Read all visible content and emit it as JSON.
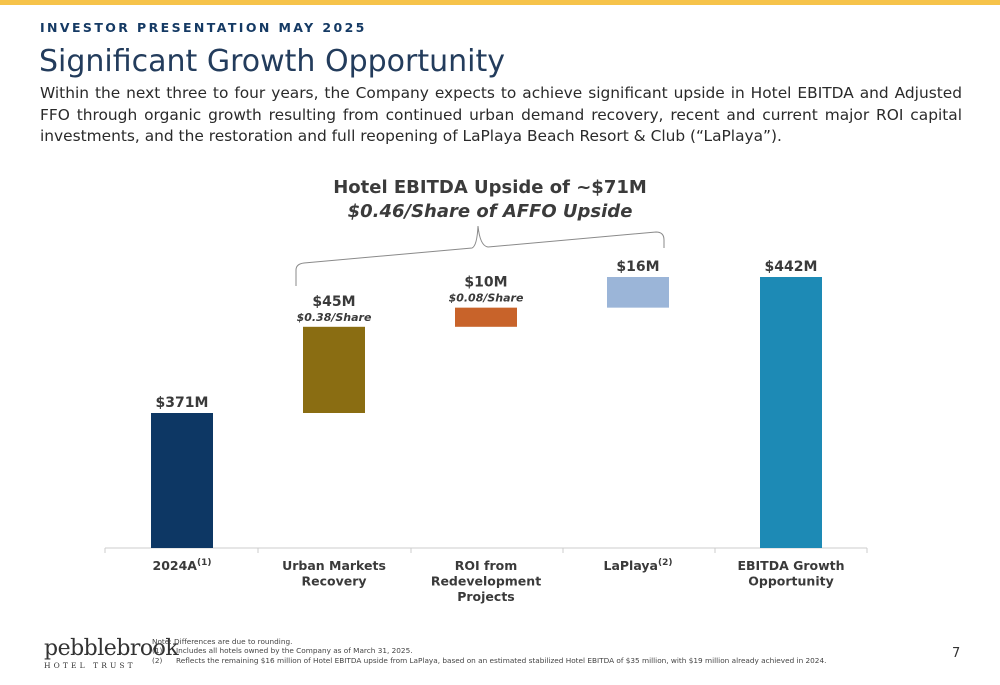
{
  "header": {
    "eyebrow": "INVESTOR PRESENTATION MAY 2025",
    "title": "Significant Growth Opportunity",
    "intro": "Within the next three to four years, the Company expects to achieve significant upside in Hotel EBITDA and Adjusted FFO through organic growth resulting from continued urban demand recovery, recent and current major ROI capital investments, and the restoration and full reopening of LaPlaya Beach Resort & Club (“LaPlaya”)."
  },
  "callout": {
    "line1": "Hotel EBITDA Upside of ~$71M",
    "line2": "$0.46/Share of AFFO Upside"
  },
  "chart_data": {
    "type": "bar",
    "subtype": "waterfall",
    "unit": "$M",
    "categories": [
      "2024A",
      "Urban Markets Recovery",
      "ROI from Redevelopment Projects",
      "LaPlaya",
      "EBITDA Growth Opportunity"
    ],
    "category_footnotes": [
      "(1)",
      "",
      "",
      "(2)",
      ""
    ],
    "bars": [
      {
        "category": "2024A",
        "start": 0,
        "end": 371,
        "label": "$371M",
        "sublabel": "",
        "color": "#0d3764"
      },
      {
        "category": "Urban Markets Recovery",
        "start": 371,
        "end": 416,
        "label": "$45M",
        "sublabel": "$0.38/Share",
        "color": "#8a6d12"
      },
      {
        "category": "ROI from Redevelopment Projects",
        "start": 416,
        "end": 426,
        "label": "$10M",
        "sublabel": "$0.08/Share",
        "color": "#c8632a"
      },
      {
        "category": "LaPlaya",
        "start": 426,
        "end": 442,
        "label": "$16M",
        "sublabel": "",
        "color": "#9bb5d8"
      },
      {
        "category": "EBITDA Growth Opportunity",
        "start": 0,
        "end": 442,
        "label": "$442M",
        "sublabel": "",
        "color": "#1d8ab5"
      }
    ],
    "axis_color": "#cccccc"
  },
  "footnotes": {
    "note": "Note: Differences are due to rounding.",
    "items": [
      {
        "num": "(1)",
        "text": "Includes all hotels owned by the Company as of March 31, 2025."
      },
      {
        "num": "(2)",
        "text": "Reflects the remaining $16 million of Hotel EBITDA upside from LaPlaya, based on an estimated stabilized Hotel EBITDA of $35 million, with $19 million already achieved in 2024."
      }
    ]
  },
  "logo": {
    "word": "pebblebrook",
    "sub": "HOTEL TRUST"
  },
  "page_number": "7"
}
